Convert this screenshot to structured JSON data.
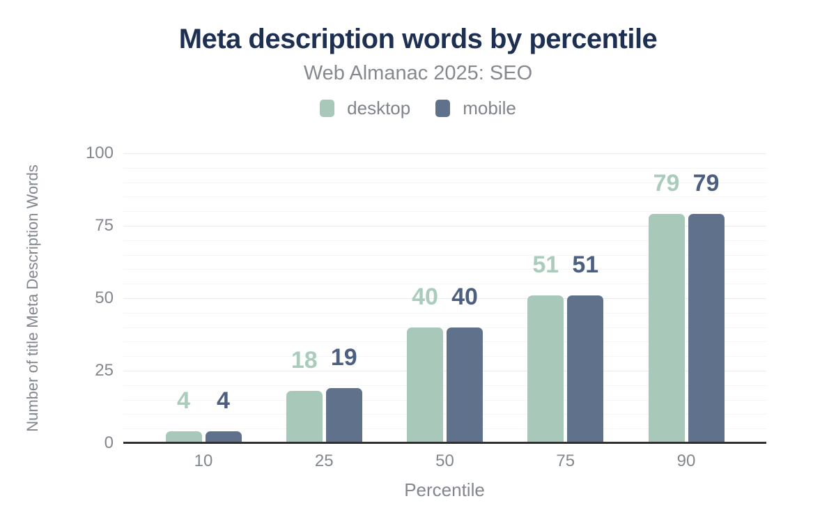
{
  "chart_data": {
    "type": "bar",
    "title": "Meta description words by percentile",
    "subtitle": "Web Almanac 2025: SEO",
    "xlabel": "Percentile",
    "ylabel": "Number of title Meta Description Words",
    "categories": [
      "10",
      "25",
      "50",
      "75",
      "90"
    ],
    "series": [
      {
        "name": "desktop",
        "values": [
          4,
          18,
          40,
          51,
          79
        ],
        "bar_color": "#a8c9ba",
        "label_color": "#a9ccbc"
      },
      {
        "name": "mobile",
        "values": [
          4,
          19,
          40,
          51,
          79
        ],
        "bar_color": "#60718c",
        "label_color": "#4d5f80"
      }
    ],
    "ylim": [
      0,
      100
    ],
    "yticks": [
      0,
      25,
      50,
      75,
      100
    ],
    "grid": {
      "minor_step": 5,
      "major_step": 25,
      "grid_on": true
    },
    "legend_position": "top",
    "value_labels": true
  },
  "colors": {
    "title": "#1e3051",
    "muted_text": "#82878d",
    "axis_line": "#303030",
    "minor_gridline": "#f5f5f6",
    "major_gridline": "#e9eaec",
    "background": "#ffffff"
  }
}
